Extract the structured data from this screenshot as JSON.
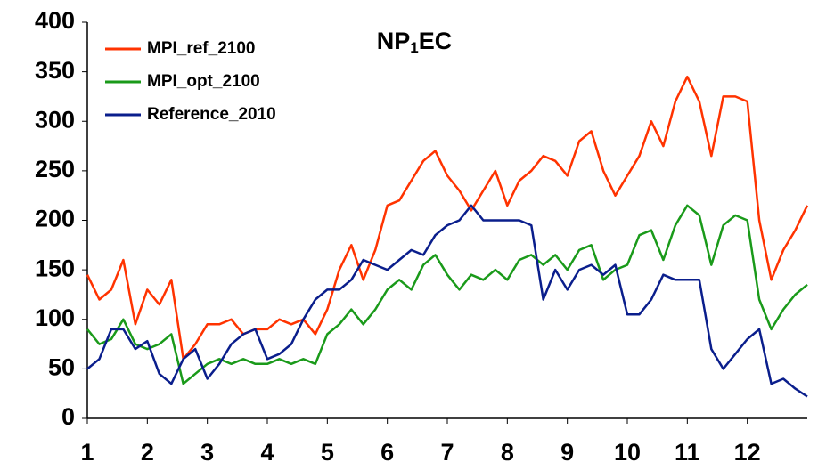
{
  "chart_data": {
    "type": "line",
    "title": [
      "NP",
      "1",
      "EC"
    ],
    "xlim": [
      1,
      13.0
    ],
    "xticks": [
      1,
      2,
      3,
      4,
      5,
      6,
      7,
      8,
      9,
      10,
      11,
      12
    ],
    "ylim": [
      0,
      400
    ],
    "yticks": [
      0,
      50,
      100,
      150,
      200,
      250,
      300,
      350,
      400
    ],
    "x": [
      1.0,
      1.2,
      1.4,
      1.6,
      1.8,
      2.0,
      2.2,
      2.4,
      2.6,
      2.8,
      3.0,
      3.2,
      3.4,
      3.6,
      3.8,
      4.0,
      4.2,
      4.4,
      4.6,
      4.8,
      5.0,
      5.2,
      5.4,
      5.6,
      5.8,
      6.0,
      6.2,
      6.4,
      6.6,
      6.8,
      7.0,
      7.2,
      7.4,
      7.6,
      7.8,
      8.0,
      8.2,
      8.4,
      8.6,
      8.8,
      9.0,
      9.2,
      9.4,
      9.6,
      9.8,
      10.0,
      10.2,
      10.4,
      10.6,
      10.8,
      11.0,
      11.2,
      11.4,
      11.6,
      11.8,
      12.0,
      12.2,
      12.4,
      12.6,
      12.8,
      13.0
    ],
    "series": [
      {
        "name": "MPI_ref_2100",
        "color": "#ff3300",
        "values": [
          145,
          120,
          130,
          160,
          95,
          130,
          115,
          140,
          60,
          75,
          95,
          95,
          100,
          85,
          90,
          90,
          100,
          95,
          100,
          85,
          110,
          150,
          175,
          140,
          170,
          215,
          220,
          240,
          260,
          270,
          245,
          230,
          210,
          230,
          250,
          215,
          240,
          250,
          265,
          260,
          245,
          280,
          290,
          250,
          225,
          245,
          265,
          300,
          275,
          320,
          345,
          320,
          265,
          325,
          325,
          320,
          200,
          140,
          170,
          190,
          215
        ]
      },
      {
        "name": "MPI_opt_2100",
        "color": "#1a9a1a",
        "values": [
          90,
          75,
          80,
          100,
          75,
          70,
          75,
          85,
          35,
          45,
          55,
          60,
          55,
          60,
          55,
          55,
          60,
          55,
          60,
          55,
          85,
          95,
          110,
          95,
          110,
          130,
          140,
          130,
          155,
          165,
          145,
          130,
          145,
          140,
          150,
          140,
          160,
          165,
          155,
          165,
          150,
          170,
          175,
          140,
          150,
          155,
          185,
          190,
          160,
          195,
          215,
          205,
          155,
          195,
          205,
          200,
          120,
          90,
          110,
          125,
          135
        ]
      },
      {
        "name": "Reference_2010",
        "color": "#0a1e8c",
        "values": [
          50,
          60,
          90,
          90,
          70,
          78,
          45,
          35,
          60,
          70,
          40,
          55,
          75,
          85,
          90,
          60,
          65,
          75,
          100,
          120,
          130,
          130,
          140,
          160,
          155,
          150,
          160,
          170,
          165,
          185,
          195,
          200,
          215,
          200,
          200,
          200,
          200,
          195,
          120,
          150,
          130,
          150,
          155,
          145,
          155,
          105,
          105,
          120,
          145,
          140,
          140,
          140,
          70,
          50,
          65,
          80,
          90,
          35,
          40,
          30,
          22
        ]
      }
    ]
  }
}
